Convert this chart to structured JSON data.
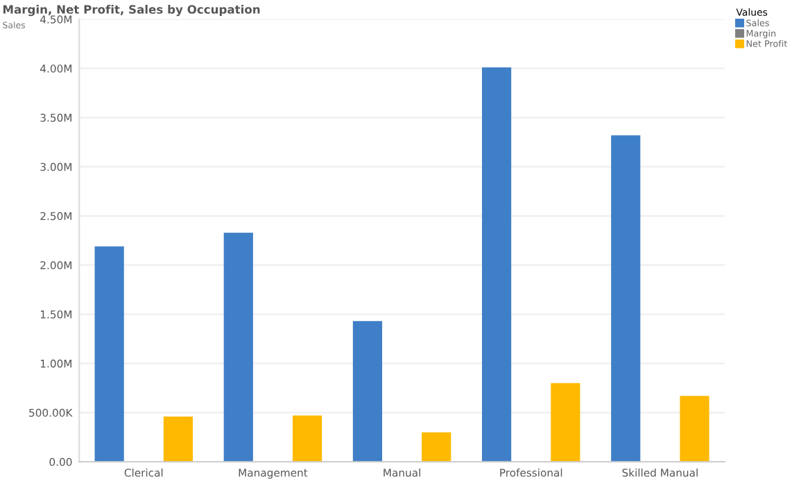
{
  "chart_data": {
    "type": "bar",
    "title": "Margin, Net Profit, Sales by Occupation",
    "ylabel": "Sales",
    "legend_title": "Values",
    "categories": [
      "Clerical",
      "Management",
      "Manual",
      "Professional",
      "Skilled Manual"
    ],
    "series": [
      {
        "name": "Sales",
        "color": "#3f7fc7",
        "values": [
          2190000,
          2330000,
          1430000,
          4010000,
          3320000
        ]
      },
      {
        "name": "Margin",
        "color": "#7f7f7f",
        "values": [
          null,
          null,
          null,
          null,
          null
        ]
      },
      {
        "name": "Net Profit",
        "color": "#ffb900",
        "values": [
          460000,
          470000,
          300000,
          800000,
          670000
        ]
      }
    ],
    "ylim": [
      0,
      4500000
    ],
    "yticks": [
      {
        "value": 0,
        "label": "0.00"
      },
      {
        "value": 500000,
        "label": "500.00K"
      },
      {
        "value": 1000000,
        "label": "1.00M"
      },
      {
        "value": 1500000,
        "label": "1.50M"
      },
      {
        "value": 2000000,
        "label": "2.00M"
      },
      {
        "value": 2500000,
        "label": "2.50M"
      },
      {
        "value": 3000000,
        "label": "3.00M"
      },
      {
        "value": 3500000,
        "label": "3.50M"
      },
      {
        "value": 4000000,
        "label": "4.00M"
      },
      {
        "value": 4500000,
        "label": "4.50M"
      }
    ],
    "grid": "y",
    "legend": "top right"
  }
}
